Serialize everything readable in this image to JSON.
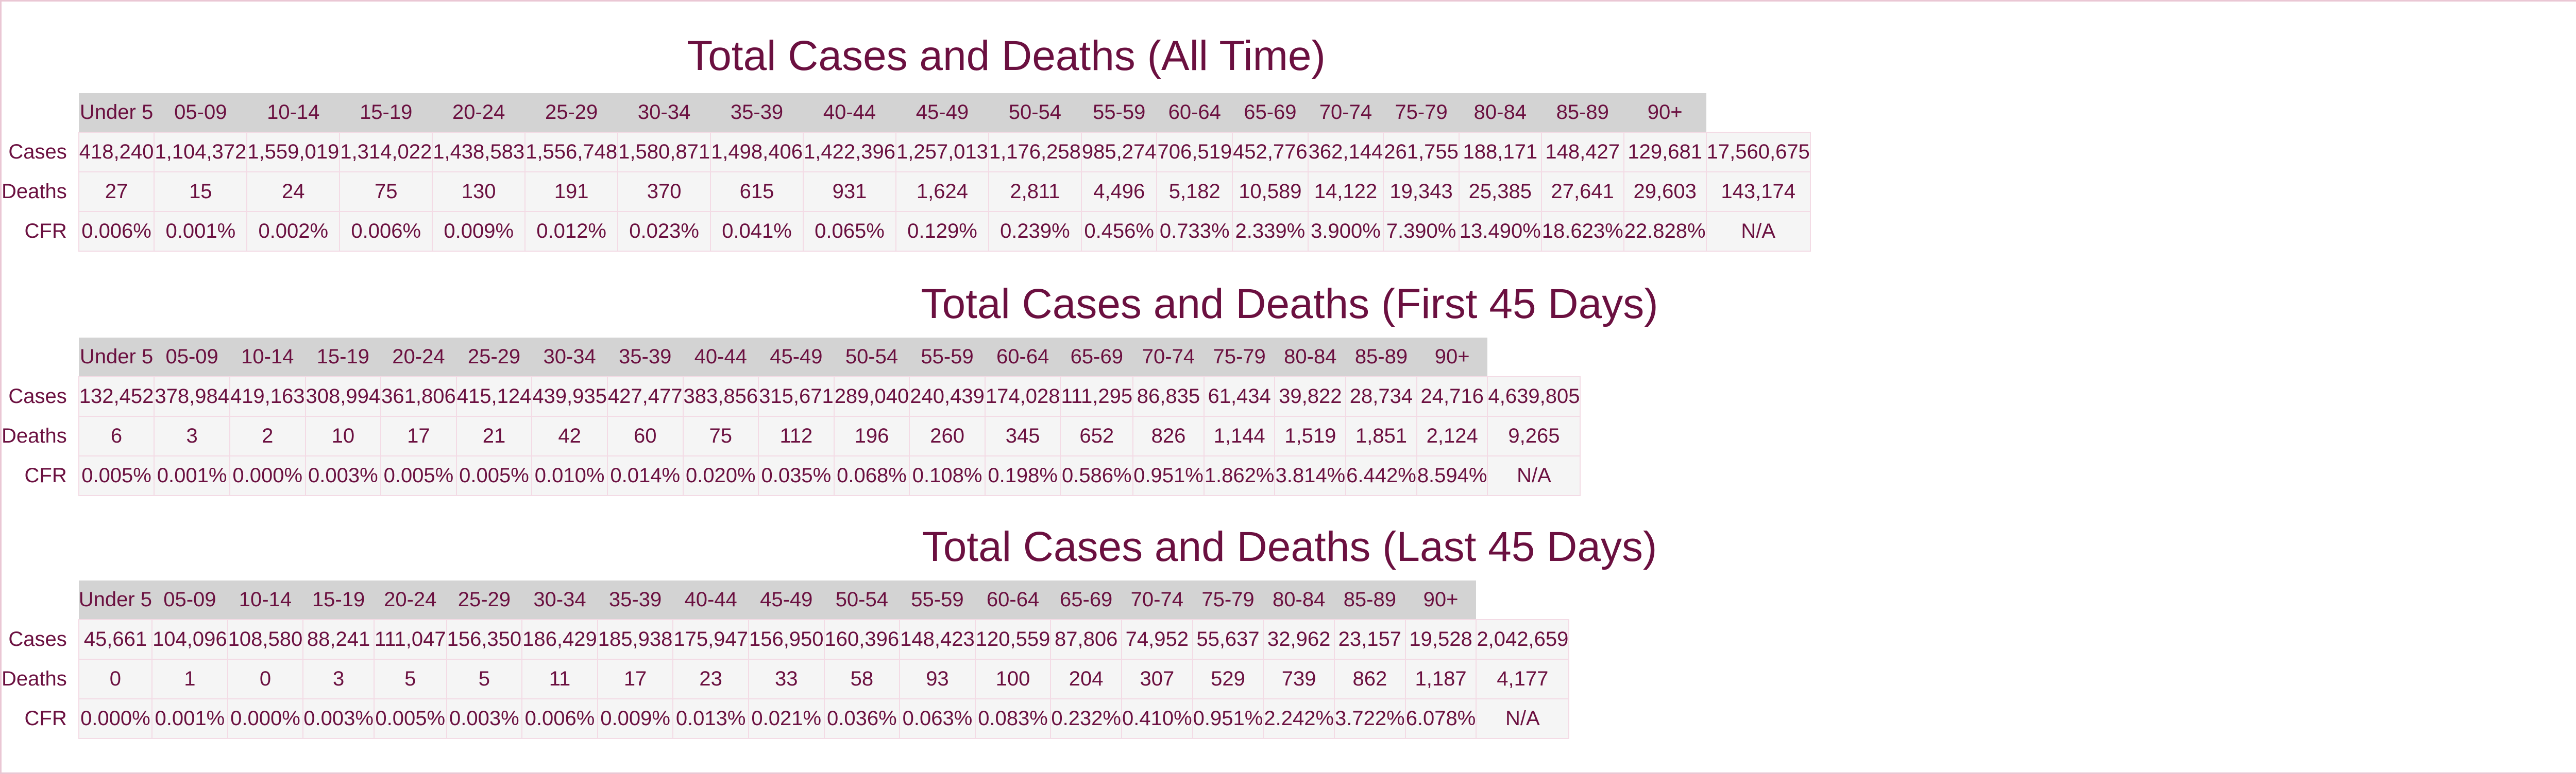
{
  "sections": [
    {
      "title": "Total Cases and Deaths (All Time)",
      "headers": [
        "Under 5",
        "05-09",
        "10-14",
        "15-19",
        "20-24",
        "25-29",
        "30-34",
        "35-39",
        "40-44",
        "45-49",
        "50-54",
        "55-59",
        "60-64",
        "65-69",
        "70-74",
        "75-79",
        "80-84",
        "85-89",
        "90+"
      ],
      "rows": [
        {
          "label": "Cases",
          "values": [
            "418,240",
            "1,104,372",
            "1,559,019",
            "1,314,022",
            "1,438,583",
            "1,556,748",
            "1,580,871",
            "1,498,406",
            "1,422,396",
            "1,257,013",
            "1,176,258",
            "985,274",
            "706,519",
            "452,776",
            "362,144",
            "261,755",
            "188,171",
            "148,427",
            "129,681",
            "17,560,675"
          ]
        },
        {
          "label": "Deaths",
          "values": [
            "27",
            "15",
            "24",
            "75",
            "130",
            "191",
            "370",
            "615",
            "931",
            "1,624",
            "2,811",
            "4,496",
            "5,182",
            "10,589",
            "14,122",
            "19,343",
            "25,385",
            "27,641",
            "29,603",
            "143,174"
          ]
        },
        {
          "label": "CFR",
          "values": [
            "0.006%",
            "0.001%",
            "0.002%",
            "0.006%",
            "0.009%",
            "0.012%",
            "0.023%",
            "0.041%",
            "0.065%",
            "0.129%",
            "0.239%",
            "0.456%",
            "0.733%",
            "2.339%",
            "3.900%",
            "7.390%",
            "13.490%",
            "18.623%",
            "22.828%",
            "N/A"
          ]
        }
      ]
    },
    {
      "title": "Total Cases and Deaths (First 45 Days)",
      "headers": [
        "Under 5",
        "05-09",
        "10-14",
        "15-19",
        "20-24",
        "25-29",
        "30-34",
        "35-39",
        "40-44",
        "45-49",
        "50-54",
        "55-59",
        "60-64",
        "65-69",
        "70-74",
        "75-79",
        "80-84",
        "85-89",
        "90+"
      ],
      "rows": [
        {
          "label": "Cases",
          "values": [
            "132,452",
            "378,984",
            "419,163",
            "308,994",
            "361,806",
            "415,124",
            "439,935",
            "427,477",
            "383,856",
            "315,671",
            "289,040",
            "240,439",
            "174,028",
            "111,295",
            "86,835",
            "61,434",
            "39,822",
            "28,734",
            "24,716",
            "4,639,805"
          ]
        },
        {
          "label": "Deaths",
          "values": [
            "6",
            "3",
            "2",
            "10",
            "17",
            "21",
            "42",
            "60",
            "75",
            "112",
            "196",
            "260",
            "345",
            "652",
            "826",
            "1,144",
            "1,519",
            "1,851",
            "2,124",
            "9,265"
          ]
        },
        {
          "label": "CFR",
          "values": [
            "0.005%",
            "0.001%",
            "0.000%",
            "0.003%",
            "0.005%",
            "0.005%",
            "0.010%",
            "0.014%",
            "0.020%",
            "0.035%",
            "0.068%",
            "0.108%",
            "0.198%",
            "0.586%",
            "0.951%",
            "1.862%",
            "3.814%",
            "6.442%",
            "8.594%",
            "N/A"
          ]
        }
      ]
    },
    {
      "title": "Total Cases and Deaths (Last 45 Days)",
      "headers": [
        "Under 5",
        "05-09",
        "10-14",
        "15-19",
        "20-24",
        "25-29",
        "30-34",
        "35-39",
        "40-44",
        "45-49",
        "50-54",
        "55-59",
        "60-64",
        "65-69",
        "70-74",
        "75-79",
        "80-84",
        "85-89",
        "90+"
      ],
      "rows": [
        {
          "label": "Cases",
          "values": [
            "45,661",
            "104,096",
            "108,580",
            "88,241",
            "111,047",
            "156,350",
            "186,429",
            "185,938",
            "175,947",
            "156,950",
            "160,396",
            "148,423",
            "120,559",
            "87,806",
            "74,952",
            "55,637",
            "32,962",
            "23,157",
            "19,528",
            "2,042,659"
          ]
        },
        {
          "label": "Deaths",
          "values": [
            "0",
            "1",
            "0",
            "3",
            "5",
            "5",
            "11",
            "17",
            "23",
            "33",
            "58",
            "93",
            "100",
            "204",
            "307",
            "529",
            "739",
            "862",
            "1,187",
            "4,177"
          ]
        },
        {
          "label": "CFR",
          "values": [
            "0.000%",
            "0.001%",
            "0.000%",
            "0.003%",
            "0.005%",
            "0.003%",
            "0.006%",
            "0.009%",
            "0.013%",
            "0.021%",
            "0.036%",
            "0.063%",
            "0.083%",
            "0.232%",
            "0.410%",
            "0.951%",
            "2.242%",
            "3.722%",
            "6.078%",
            "N/A"
          ]
        }
      ]
    }
  ],
  "colors": {
    "text": "#6b1040",
    "header_bg": "#d3d3d3",
    "cell_bg": "#f5f5f5",
    "cell_border": "#f3dbe5",
    "page_border": "#eac7d4"
  }
}
